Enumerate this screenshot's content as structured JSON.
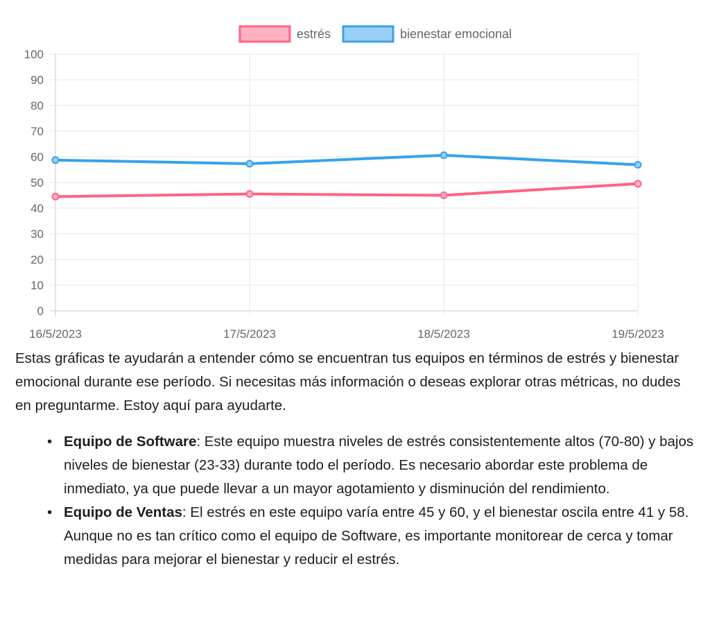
{
  "chart_data": {
    "type": "line",
    "categories": [
      "16/5/2023",
      "17/5/2023",
      "18/5/2023",
      "19/5/2023"
    ],
    "series": [
      {
        "name": "estrés",
        "values": [
          44.5,
          45.5,
          45,
          49.5
        ],
        "color": "#ff6384",
        "fill": "#ffb1c1"
      },
      {
        "name": "bienestar emocional",
        "values": [
          58.7,
          57.3,
          60.6,
          56.9
        ],
        "color": "#36a2eb",
        "fill": "#9ad0f5"
      }
    ],
    "ylim": [
      0,
      100
    ],
    "yticks": [
      0,
      10,
      20,
      30,
      40,
      50,
      60,
      70,
      80,
      90,
      100
    ],
    "grid": true,
    "legend": "top-center",
    "title": "",
    "xlabel": "",
    "ylabel": ""
  },
  "intro_text": "Estas gráficas te ayudarán a entender cómo se encuentran tus equipos en términos de estrés y bienestar emocional durante ese período. Si necesitas más información o deseas explorar otras métricas, no dudes en preguntarme. Estoy aquí para ayudarte.",
  "bullets": [
    {
      "heading": "Equipo de Software",
      "text": ": Este equipo muestra niveles de estrés consistentemente altos (70-80) y bajos niveles de bienestar (23-33) durante todo el período. Es necesario abordar este problema de inmediato, ya que puede llevar a un mayor agotamiento y disminución del rendimiento."
    },
    {
      "heading": "Equipo de Ventas",
      "text": ": El estrés en este equipo varía entre 45 y 60, y el bienestar oscila entre 41 y 58. Aunque no es tan crítico como el equipo de Software, es importante monitorear de cerca y tomar medidas para mejorar el bienestar y reducir el estrés."
    }
  ]
}
